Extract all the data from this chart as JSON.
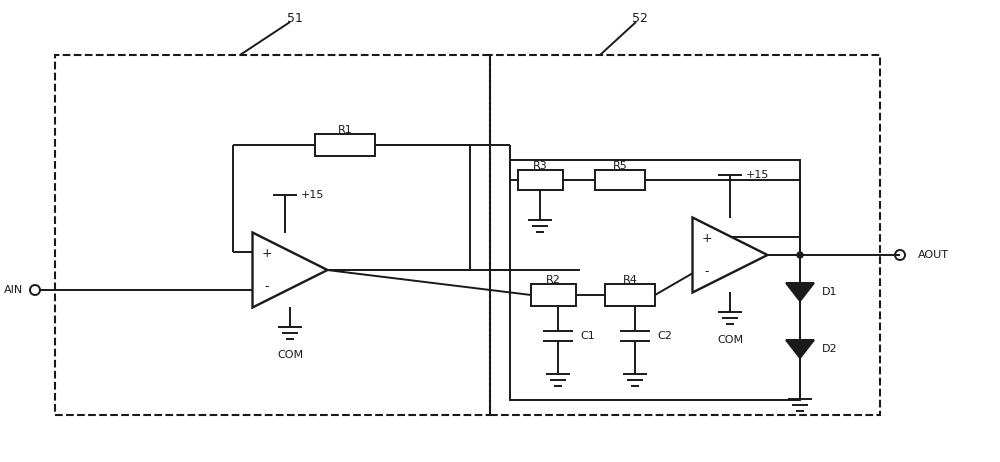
{
  "bg_color": "#ffffff",
  "line_color": "#1a1a1a",
  "label_51": "51",
  "label_52": "52",
  "label_ain": "AIN",
  "label_aout": "AOUT",
  "label_com1": "COM",
  "label_com2": "COM",
  "label_r1": "R1",
  "label_r2": "R2",
  "label_r3": "R3",
  "label_r4": "R4",
  "label_r5": "R5",
  "label_c1": "C1",
  "label_c2": "C2",
  "label_d1": "D1",
  "label_d2": "D2",
  "label_v15_1": "+15",
  "label_v15_2": "+15",
  "figsize": [
    10.0,
    4.62
  ],
  "dpi": 100
}
